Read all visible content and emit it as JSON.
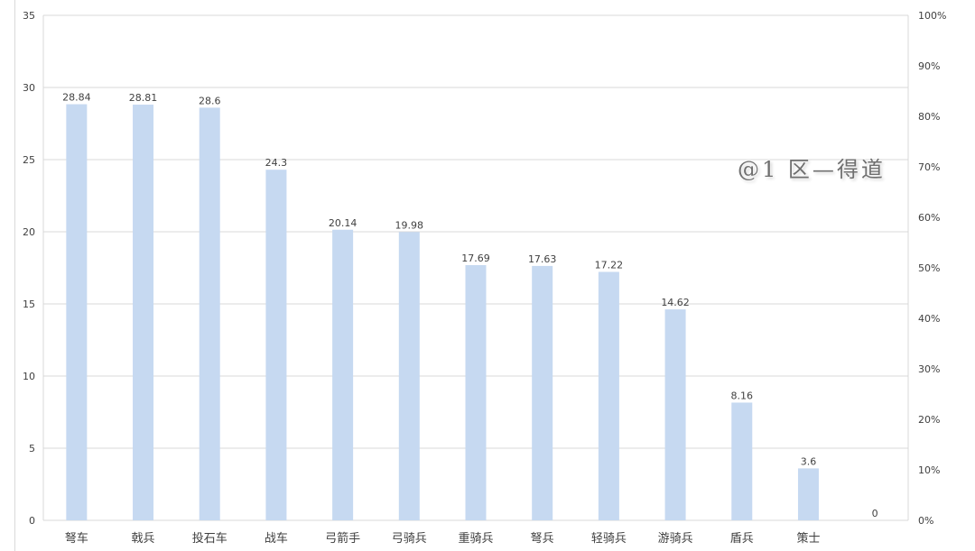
{
  "chart_data": {
    "type": "bar",
    "categories": [
      "弩车",
      "戟兵",
      "投石车",
      "战车",
      "弓箭手",
      "弓骑兵",
      "重骑兵",
      "弩兵",
      "轻骑兵",
      "游骑兵",
      "盾兵",
      "策士",
      ""
    ],
    "values": [
      28.84,
      28.81,
      28.6,
      24.3,
      20.14,
      19.98,
      17.69,
      17.63,
      17.22,
      14.62,
      8.16,
      3.6,
      0
    ],
    "data_labels": [
      "28.84",
      "28.81",
      "28.6",
      "24.3",
      "20.14",
      "19.98",
      "17.69",
      "17.63",
      "17.22",
      "14.62",
      "8.16",
      "3.6",
      "0"
    ],
    "ylim": [
      0,
      35
    ],
    "y_ticks": [
      "0",
      "5",
      "10",
      "15",
      "20",
      "25",
      "30",
      "35"
    ],
    "y2lim": [
      0,
      100
    ],
    "y2_ticks": [
      "0%",
      "10%",
      "20%",
      "30%",
      "40%",
      "50%",
      "60%",
      "70%",
      "80%",
      "90%",
      "100%"
    ],
    "grid": true,
    "colors": {
      "bar": "#c6d9f1",
      "grid": "#d9d9d9",
      "text": "#404040"
    }
  },
  "watermark": "@1 区—得道"
}
